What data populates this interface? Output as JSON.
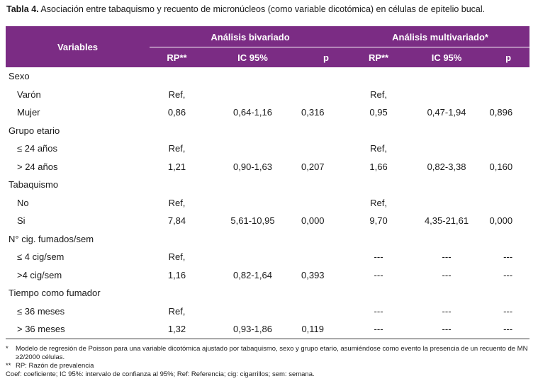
{
  "caption": {
    "lead": "Tabla 4.",
    "text": " Asociación entre tabaquismo y recuento de micronúcleos (como variable dicotómica) en células de epitelio bucal."
  },
  "table": {
    "header": {
      "variables": "Variables",
      "group_bivariado": "Análisis bivariado",
      "group_multivariado": "Análisis multivariado*",
      "rp": "RP**",
      "ic": "IC 95%",
      "p": "p"
    },
    "rows": [
      {
        "label": "Sexo",
        "indent": false,
        "rp1": "",
        "ic1": "",
        "p1": "",
        "rp2": "",
        "ic2": "",
        "p2": ""
      },
      {
        "label": "Varón",
        "indent": true,
        "rp1": "Ref,",
        "ic1": "",
        "p1": "",
        "rp2": "Ref,",
        "ic2": "",
        "p2": ""
      },
      {
        "label": "Mujer",
        "indent": true,
        "rp1": "0,86",
        "ic1": "0,64-1,16",
        "p1": "0,316",
        "rp2": "0,95",
        "ic2": "0,47-1,94",
        "p2": "0,896"
      },
      {
        "label": "Grupo etario",
        "indent": false,
        "rp1": "",
        "ic1": "",
        "p1": "",
        "rp2": "",
        "ic2": "",
        "p2": ""
      },
      {
        "label": "≤ 24 años",
        "indent": true,
        "rp1": "Ref,",
        "ic1": "",
        "p1": "",
        "rp2": "Ref,",
        "ic2": "",
        "p2": ""
      },
      {
        "label": "> 24 años",
        "indent": true,
        "rp1": "1,21",
        "ic1": "0,90-1,63",
        "p1": "0,207",
        "rp2": "1,66",
        "ic2": "0,82-3,38",
        "p2": "0,160"
      },
      {
        "label": "Tabaquismo",
        "indent": false,
        "rp1": "",
        "ic1": "",
        "p1": "",
        "rp2": "",
        "ic2": "",
        "p2": ""
      },
      {
        "label": "No",
        "indent": true,
        "rp1": "Ref,",
        "ic1": "",
        "p1": "",
        "rp2": "Ref,",
        "ic2": "",
        "p2": ""
      },
      {
        "label": "Si",
        "indent": true,
        "rp1": "7,84",
        "ic1": "5,61-10,95",
        "p1": "0,000",
        "rp2": "9,70",
        "ic2": "4,35-21,61",
        "p2": "0,000"
      },
      {
        "label": "N° cig. fumados/sem",
        "indent": false,
        "rp1": "",
        "ic1": "",
        "p1": "",
        "rp2": "",
        "ic2": "",
        "p2": ""
      },
      {
        "label": "≤ 4 cig/sem",
        "indent": true,
        "rp1": "Ref,",
        "ic1": "",
        "p1": "",
        "rp2": "---",
        "ic2": "---",
        "p2": "---"
      },
      {
        "label": ">4 cig/sem",
        "indent": true,
        "rp1": "1,16",
        "ic1": "0,82-1,64",
        "p1": "0,393",
        "rp2": "---",
        "ic2": "---",
        "p2": "---"
      },
      {
        "label": "Tiempo como fumador",
        "indent": false,
        "rp1": "",
        "ic1": "",
        "p1": "",
        "rp2": "",
        "ic2": "",
        "p2": ""
      },
      {
        "label": "≤ 36 meses",
        "indent": true,
        "rp1": "Ref,",
        "ic1": "",
        "p1": "",
        "rp2": "---",
        "ic2": "---",
        "p2": "---"
      },
      {
        "label": "> 36 meses",
        "indent": true,
        "rp1": "1,32",
        "ic1": "0,93-1,86",
        "p1": "0,119",
        "rp2": "---",
        "ic2": "---",
        "p2": "---"
      }
    ]
  },
  "footnotes": [
    {
      "marker": "*",
      "text": "Modelo de regresión de Poisson para una variable dicotómica ajustado por tabaquismo, sexo y grupo etario, asumiéndose como evento la presencia de un recuento de MN ≥2/2000 células."
    },
    {
      "marker": "**",
      "text": "RP: Razón de prevalencia"
    },
    {
      "marker": "",
      "text": "Coef: coeficiente; IC 95%: intervalo de confianza al 95%; Ref: Referencia; cig: cigarrillos; sem: semana."
    }
  ],
  "colors": {
    "header_bg": "#7b2c84",
    "header_text": "#ffffff"
  }
}
